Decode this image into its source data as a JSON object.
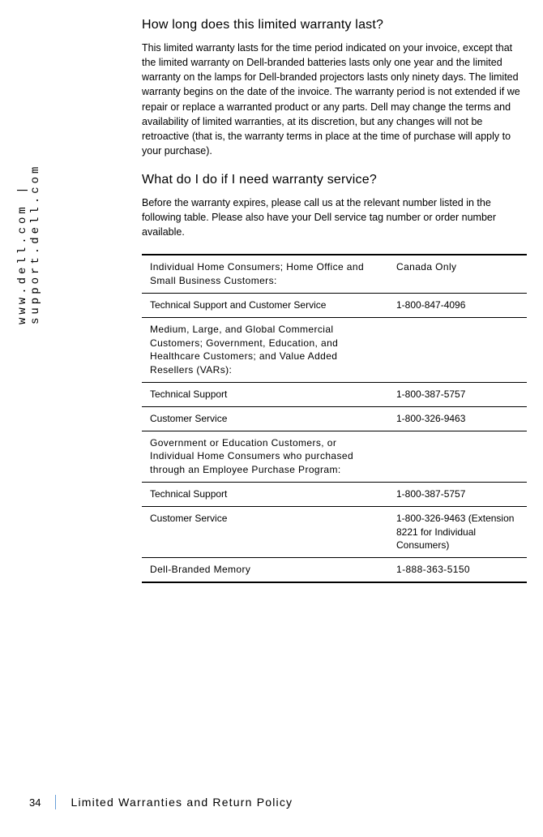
{
  "sidebar": {
    "url_text": "www.dell.com | support.dell.com"
  },
  "sections": [
    {
      "heading": "How long does this limited warranty last?",
      "body": "This limited warranty lasts for the time period indicated on your invoice, except that the limited warranty on Dell-branded batteries lasts only one year and the limited warranty on the lamps for Dell-branded projectors lasts only ninety days. The limited warranty begins on the date of the invoice. The warranty period is not extended if we repair or replace a warranted product or any parts. Dell may change the terms and availability of limited warranties, at its discretion, but any changes will not be retroactive (that is, the warranty terms in place at the time of purchase will apply to your purchase)."
    },
    {
      "heading": "What do I do if I need warranty service?",
      "body": "Before the warranty expires, please call us at the relevant number listed in the following table. Please also have your Dell service tag number or order number available."
    }
  ],
  "table": {
    "rows": [
      {
        "left": "Individual Home Consumers; Home Office and Small Business Customers:",
        "right": "Canada Only",
        "header": true
      },
      {
        "left": "Technical Support and Customer Service",
        "right": "1-800-847-4096",
        "header": false
      },
      {
        "left": "Medium, Large, and Global Commercial Customers; Government, Education, and Healthcare Customers; and Value Added Resellers (VARs):",
        "right": "",
        "header": true
      },
      {
        "left": "Technical Support",
        "right": "1-800-387-5757",
        "header": false
      },
      {
        "left": "Customer Service",
        "right": "1-800-326-9463",
        "header": false
      },
      {
        "left": "Government or Education Customers, or Individual Home Consumers who purchased through an Employee Purchase Program:",
        "right": "",
        "header": true
      },
      {
        "left": "Technical Support",
        "right": "1-800-387-5757",
        "header": false
      },
      {
        "left": "Customer Service",
        "right": "1-800-326-9463 (Extension 8221 for Individual Consumers)",
        "header": false
      },
      {
        "left": "Dell-Branded Memory",
        "right": "1-888-363-5150",
        "header": true
      }
    ]
  },
  "footer": {
    "page": "34",
    "title": "Limited Warranties and Return Policy"
  }
}
